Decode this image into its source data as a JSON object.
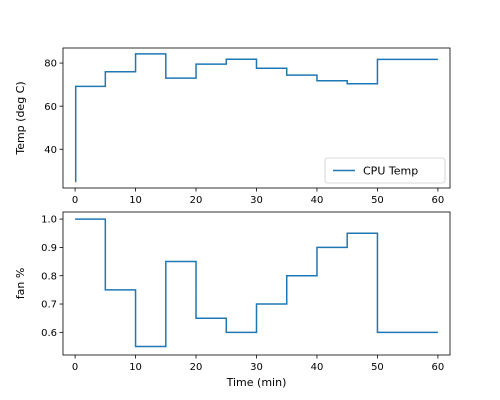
{
  "chart_data": [
    {
      "type": "line",
      "step": "post",
      "title": "",
      "xlabel": "",
      "ylabel": "Temp (deg C)",
      "xlim": [
        -2,
        62
      ],
      "ylim": [
        22,
        87
      ],
      "xticks": [
        0,
        10,
        20,
        30,
        40,
        50,
        60
      ],
      "yticks": [
        40,
        60,
        80
      ],
      "grid": false,
      "legend": {
        "placement": "lower-right",
        "entries": [
          "CPU Temp"
        ]
      },
      "series": [
        {
          "name": "CPU Temp",
          "color": "#1f77b4",
          "x": [
            0,
            0.1,
            5,
            10,
            15,
            20,
            25,
            30,
            35,
            40,
            45,
            50,
            60
          ],
          "y": [
            25,
            69.2,
            76,
            84.3,
            73,
            79.5,
            81.8,
            77.6,
            74.4,
            71.8,
            70.4,
            81.7,
            81.7
          ]
        }
      ]
    },
    {
      "type": "line",
      "step": "post",
      "title": "",
      "xlabel": "Time (min)",
      "ylabel": "fan %",
      "xlim": [
        -2,
        62
      ],
      "ylim": [
        0.52,
        1.025
      ],
      "xticks": [
        0,
        10,
        20,
        30,
        40,
        50,
        60
      ],
      "yticks": [
        0.6,
        0.7,
        0.8,
        0.9,
        1.0
      ],
      "ytick_labels": [
        "0.6",
        "0.7",
        "0.8",
        "0.9",
        "1.0"
      ],
      "grid": false,
      "series": [
        {
          "color": "#1f77b4",
          "x": [
            0,
            5,
            10,
            15,
            20,
            25,
            30,
            35,
            40,
            45,
            50,
            60
          ],
          "y": [
            1.0,
            0.75,
            0.55,
            0.85,
            0.65,
            0.6,
            0.7,
            0.8,
            0.9,
            0.95,
            0.6,
            0.6
          ]
        }
      ]
    }
  ]
}
